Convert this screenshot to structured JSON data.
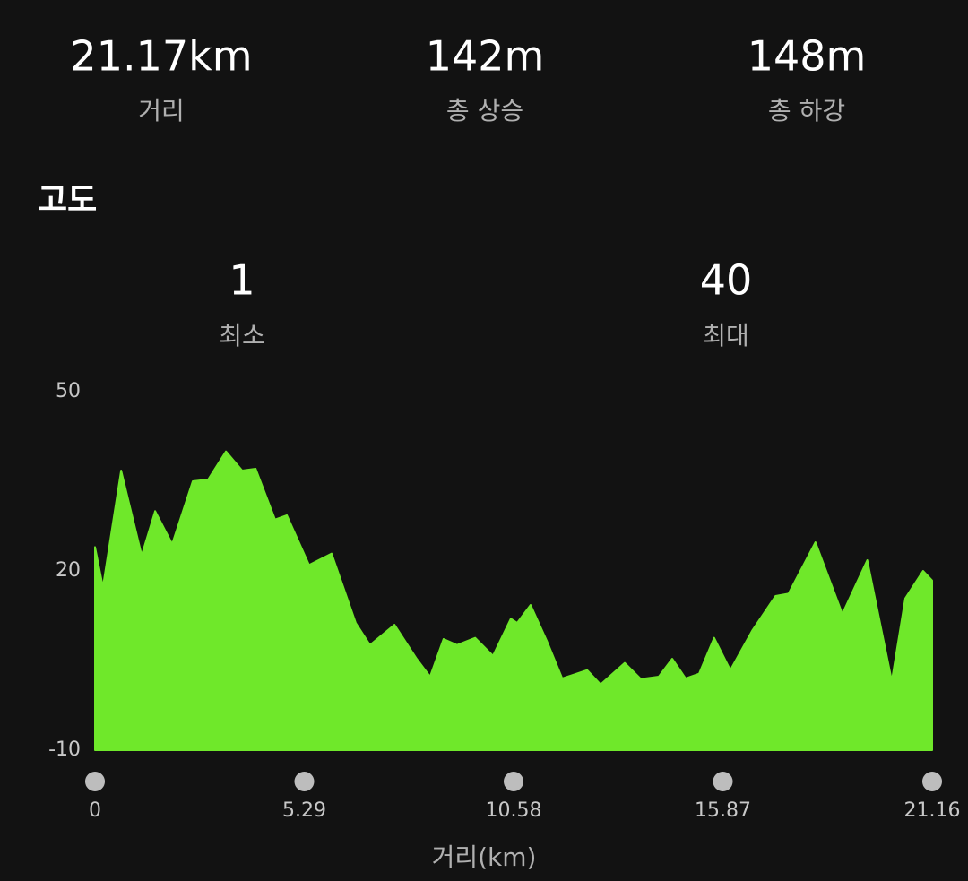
{
  "stats": [
    {
      "value": "21.17km",
      "label": "거리"
    },
    {
      "value": "142m",
      "label": "총 상승"
    },
    {
      "value": "148m",
      "label": "총 하강"
    }
  ],
  "section_title": "고도",
  "elevation_summary": [
    {
      "value": "1",
      "label": "최소"
    },
    {
      "value": "40",
      "label": "최대"
    }
  ],
  "chart_data": {
    "type": "area",
    "x_label": "거리(km)",
    "color": "#6fe82a",
    "x": [
      0,
      0.2,
      0.66,
      1.18,
      1.52,
      1.95,
      2.47,
      2.86,
      3.31,
      3.72,
      4.06,
      4.55,
      4.85,
      5.41,
      5.98,
      6.59,
      6.95,
      7.57,
      8.13,
      8.47,
      8.81,
      9.15,
      9.61,
      10.06,
      10.51,
      10.67,
      11.01,
      11.42,
      11.81,
      12.44,
      12.78,
      13.39,
      13.8,
      14.25,
      14.59,
      14.93,
      15.27,
      15.65,
      16.06,
      16.62,
      17.2,
      17.53,
      18.21,
      18.89,
      19.52,
      20.14,
      20.48,
      20.93,
      21.16
    ],
    "values": [
      24,
      17.3,
      36.8,
      22.6,
      30,
      24.5,
      35,
      35.3,
      40,
      36.8,
      37.1,
      28.6,
      29.3,
      21,
      22.9,
      11.3,
      7.6,
      11,
      5.3,
      2.3,
      8.6,
      7.6,
      8.8,
      5.8,
      12,
      11.3,
      14.3,
      8.3,
      2,
      3.4,
      1,
      4.6,
      1.9,
      2.3,
      5.3,
      2,
      2.8,
      8.8,
      3.4,
      10.1,
      15.8,
      16.2,
      24.8,
      12.8,
      21.8,
      1.6,
      15.4,
      20,
      18.4
    ],
    "xlim": [
      0,
      21.16
    ],
    "xticks": [
      0,
      5.29,
      10.58,
      15.87,
      21.16
    ],
    "ylim": [
      -10,
      50
    ],
    "yticks": [
      -10,
      20,
      50
    ]
  }
}
